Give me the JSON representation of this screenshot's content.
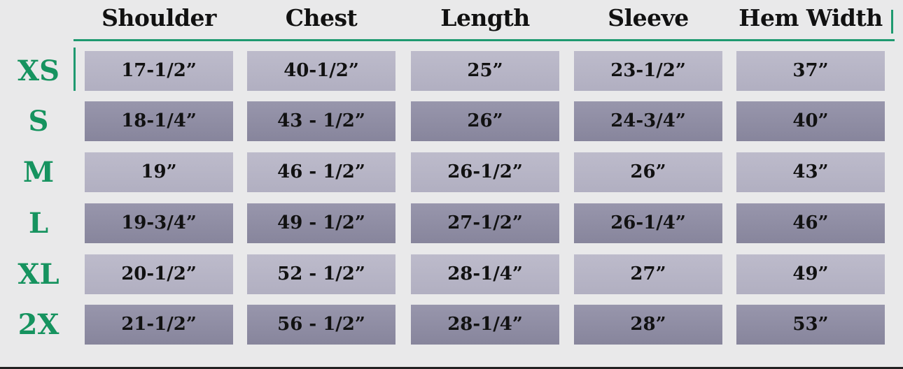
{
  "columns": [
    "Shoulder",
    "Chest",
    "Length",
    "Sleeve",
    "Hem Width"
  ],
  "rows": [
    {
      "size": "XS",
      "values": [
        "17-1/2”",
        "40-1/2”",
        "25”",
        "23-1/2”",
        "37”"
      ]
    },
    {
      "size": "S",
      "values": [
        "18-1/4”",
        "43 - 1/2”",
        "26”",
        "24-3/4”",
        "40”"
      ]
    },
    {
      "size": "M",
      "values": [
        "19”",
        "46 - 1/2”",
        "26-1/2”",
        "26”",
        "43”"
      ]
    },
    {
      "size": "L",
      "values": [
        "19-3/4”",
        "49 - 1/2”",
        "27-1/2”",
        "26-1/4”",
        "46”"
      ]
    },
    {
      "size": "XL",
      "values": [
        "20-1/2”",
        "52 - 1/2”",
        "28-1/4”",
        "27”",
        "49”"
      ]
    },
    {
      "size": "2X",
      "values": [
        "21-1/2”",
        "56 - 1/2”",
        "28-1/4”",
        "28”",
        "53”"
      ]
    }
  ],
  "colors": {
    "accent": "#1f9a70",
    "size_label": "#16935f",
    "cell_light": "#b7b5c6",
    "cell_dark": "#8f8da4",
    "background": "#e9e9ea"
  }
}
